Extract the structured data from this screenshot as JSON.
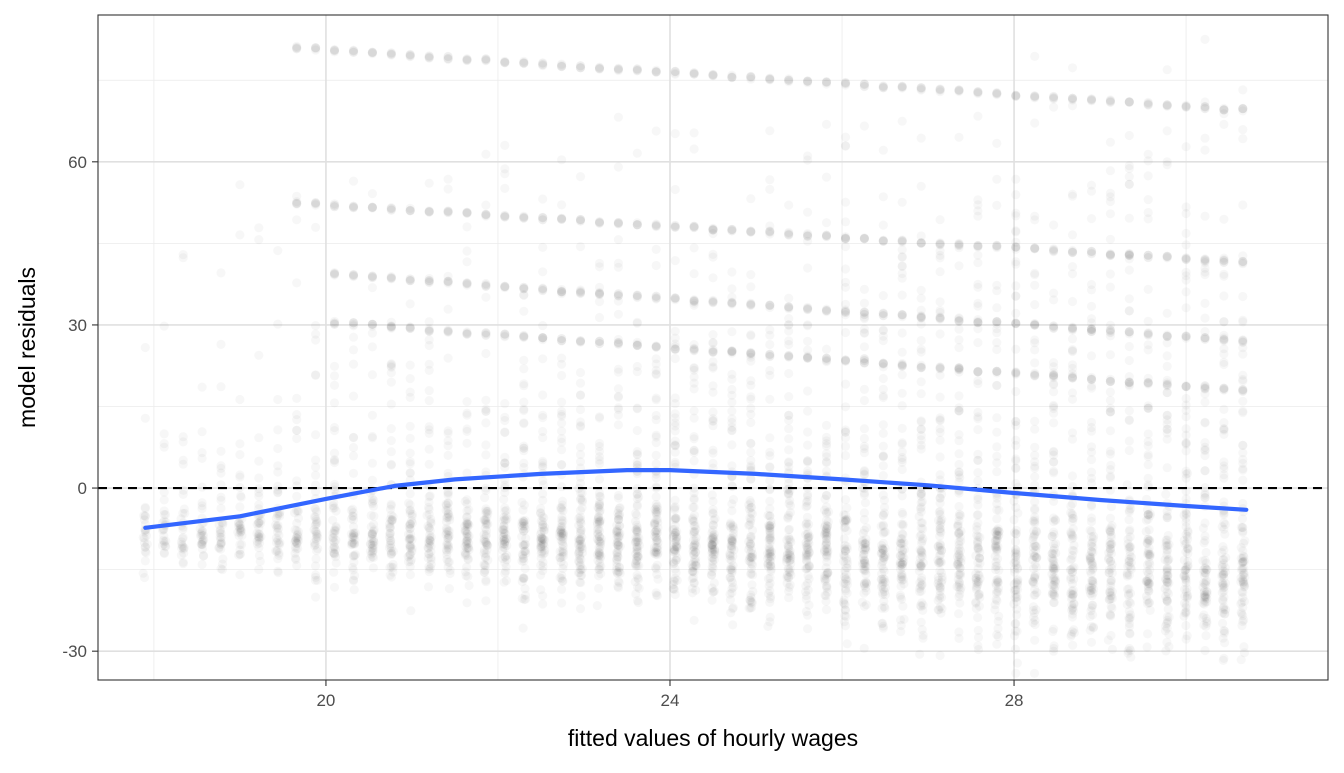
{
  "chart_data": {
    "type": "scatter",
    "title": "",
    "xlabel": "fitted values of hourly wages",
    "ylabel": "model residuals",
    "xlim": [
      17.35,
      31.65
    ],
    "ylim": [
      -35.3,
      87
    ],
    "x_ticks": [
      20,
      24,
      28
    ],
    "x_tick_labels": [
      "20",
      "24",
      "28"
    ],
    "x_minor_ticks": [
      18,
      22,
      26,
      30
    ],
    "y_ticks": [
      -30,
      0,
      30,
      60
    ],
    "y_tick_labels": [
      "-30",
      "0",
      "30",
      "60"
    ],
    "y_minor_ticks": [
      -15,
      15,
      45,
      75
    ],
    "grid": true,
    "legend": "none",
    "point_color": "#000000",
    "point_alpha": 0.03,
    "scatter_summary": {
      "x_range": [
        17.9,
        30.7
      ],
      "x_step": 0.22,
      "main_cloud_center": [
        {
          "x": 17.9,
          "y": -8.5
        },
        {
          "x": 20,
          "y": -9
        },
        {
          "x": 24,
          "y": -11
        },
        {
          "x": 28,
          "y": -15
        },
        {
          "x": 30.7,
          "y": -18
        }
      ],
      "residual_bands": [
        {
          "x": [
            19.6,
            30.7
          ],
          "y": [
            81,
            69.5
          ]
        },
        {
          "x": [
            19.6,
            30.7
          ],
          "y": [
            52.5,
            41.5
          ]
        },
        {
          "x": [
            20,
            30.7
          ],
          "y": [
            39.5,
            27
          ]
        },
        {
          "x": [
            20,
            30.7
          ],
          "y": [
            30.5,
            18
          ]
        }
      ]
    },
    "reference_line": {
      "y": 0,
      "style": "dashed",
      "color": "#000000"
    },
    "smooth_line": {
      "color": "#3366FF",
      "x": [
        17.9,
        19.0,
        20.0,
        20.8,
        21.5,
        22.5,
        23.5,
        24.0,
        25.0,
        26.0,
        27.0,
        28.0,
        29.0,
        30.0,
        30.7
      ],
      "y": [
        -7.3,
        -5.2,
        -2.0,
        0.4,
        1.6,
        2.6,
        3.3,
        3.3,
        2.6,
        1.6,
        0.5,
        -0.9,
        -2.2,
        -3.3,
        -4.0
      ]
    }
  }
}
